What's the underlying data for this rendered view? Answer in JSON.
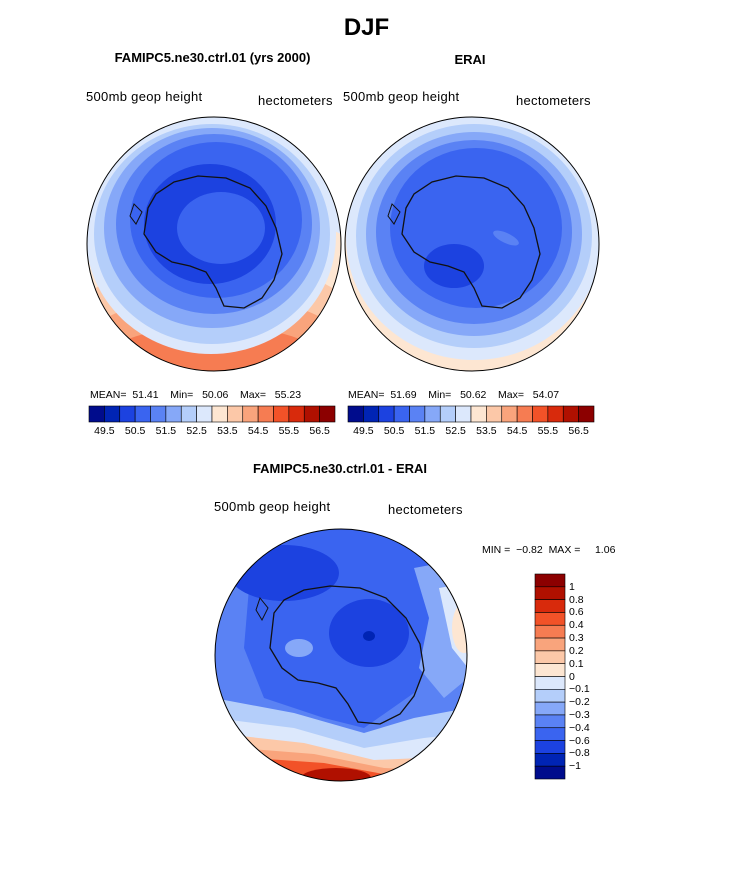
{
  "page_title": "DJF",
  "panels": [
    {
      "id": "model",
      "title": "FAMIPC5.ne30.ctrl.01 (yrs 2000)",
      "left_label": "500mb  geop  height",
      "right_label": "hectometers",
      "mean_label": "MEAN=",
      "mean": "51.41",
      "min_label": "Min=",
      "min": "50.06",
      "max_label": "Max=",
      "max": "55.23"
    },
    {
      "id": "erai",
      "title": "ERAI",
      "left_label": "500mb  geop  height",
      "right_label": "hectometers",
      "mean_label": "MEAN=",
      "mean": "51.69",
      "min_label": "Min=",
      "min": "50.62",
      "max_label": "Max=",
      "max": "54.07"
    }
  ],
  "diff_panel": {
    "title": "FAMIPC5.ne30.ctrl.01 - ERAI",
    "left_label": "500mb  geop  height",
    "right_label": "hectometers",
    "min_label": "MIN =",
    "min": "−0.82",
    "max_label": "MAX =",
    "max": "1.06"
  },
  "colors": {
    "abs_scale": [
      "#000c8c",
      "#0024b4",
      "#1c42e0",
      "#3a64f0",
      "#5a82f4",
      "#86a8f8",
      "#b4cefa",
      "#dce8fc",
      "#fde6d2",
      "#fcc8a8",
      "#f9a47c",
      "#f67c52",
      "#f25228",
      "#d82a0c",
      "#b01000",
      "#8c0000"
    ],
    "diff_scale": [
      "#000c8c",
      "#0024b4",
      "#1c42e0",
      "#3a64f0",
      "#5a82f4",
      "#86a8f8",
      "#b4cefa",
      "#dce8fc",
      "#fde6d2",
      "#fcc8a8",
      "#f9a47c",
      "#f67c52",
      "#f25228",
      "#d82a0c",
      "#b01000",
      "#8c0000"
    ]
  },
  "chart_data": [
    {
      "type": "heatmap",
      "title": "FAMIPC5.ne30.ctrl.01 (yrs 2000)",
      "variable": "500mb  geop  height",
      "units": "hectometers",
      "projection": "south polar stereographic",
      "colorbar_levels": [
        49.5,
        49.75,
        50,
        50.25,
        50.5,
        50.75,
        51,
        51.25,
        51.5,
        51.75,
        52,
        52.25,
        52.5,
        52.75,
        53,
        53.25,
        53.5,
        53.75,
        54,
        54.25,
        54.5,
        54.75,
        55,
        55.25,
        55.5,
        55.75,
        56,
        56.25,
        56.5
      ],
      "colorbar_tick_labels": [
        "49.5",
        "50.5",
        "51.5",
        "52.5",
        "53.5",
        "54.5",
        "55.5",
        "56.5"
      ],
      "mean": 51.41,
      "min": 50.06,
      "max": 55.23
    },
    {
      "type": "heatmap",
      "title": "ERAI",
      "variable": "500mb  geop  height",
      "units": "hectometers",
      "projection": "south polar stereographic",
      "colorbar_tick_labels": [
        "49.5",
        "50.5",
        "51.5",
        "52.5",
        "53.5",
        "54.5",
        "55.5",
        "56.5"
      ],
      "mean": 51.69,
      "min": 50.62,
      "max": 54.07
    },
    {
      "type": "heatmap",
      "title": "FAMIPC5.ne30.ctrl.01 - ERAI",
      "variable": "500mb  geop  height",
      "units": "hectometers",
      "projection": "south polar stereographic",
      "colorbar_levels": [
        -1,
        -0.8,
        -0.6,
        -0.4,
        -0.3,
        -0.2,
        -0.1,
        0,
        0.1,
        0.2,
        0.3,
        0.4,
        0.6,
        0.8,
        1
      ],
      "colorbar_tick_labels": [
        "1",
        "0.8",
        "0.6",
        "0.4",
        "0.3",
        "0.2",
        "0.1",
        "0",
        "−0.1",
        "−0.2",
        "−0.3",
        "−0.4",
        "−0.6",
        "−0.8",
        "−1"
      ],
      "min": -0.82,
      "max": 1.06
    }
  ]
}
